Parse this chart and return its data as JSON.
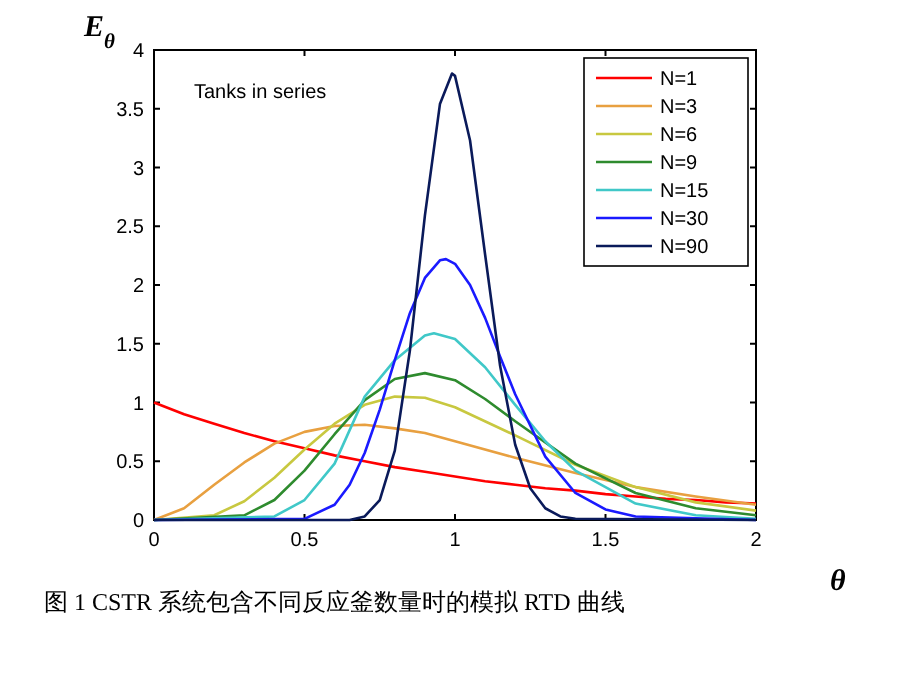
{
  "chart_data": {
    "type": "line",
    "xlabel": "θ",
    "ylabel": "E$_{θ}$",
    "xlim": [
      0,
      2
    ],
    "ylim": [
      0,
      4
    ],
    "xticks": [
      0,
      0.5,
      1,
      1.5,
      2
    ],
    "yticks": [
      0,
      0.5,
      1,
      1.5,
      2,
      2.5,
      3,
      3.5,
      4
    ],
    "legend": "top right",
    "annotations": [
      "Tanks in series",
      "图 1 CSTR 系统包含不同反应釜数量时的模拟 RTD 曲线"
    ],
    "series": [
      {
        "name": "N=1",
        "color": "#ff0000",
        "x": [
          0,
          0.1,
          0.2,
          0.3,
          0.4,
          0.5,
          0.6,
          0.7,
          0.8,
          0.9,
          1,
          1.1,
          1.2,
          1.3,
          1.4,
          1.5,
          1.6,
          1.7,
          1.8,
          1.9,
          2
        ],
        "values": [
          1,
          0.9,
          0.82,
          0.74,
          0.67,
          0.61,
          0.55,
          0.5,
          0.45,
          0.41,
          0.37,
          0.33,
          0.3,
          0.27,
          0.25,
          0.22,
          0.2,
          0.18,
          0.17,
          0.15,
          0.14
        ]
      },
      {
        "name": "N=3",
        "color": "#e8a040",
        "x": [
          0,
          0.1,
          0.2,
          0.3,
          0.4,
          0.5,
          0.6,
          0.7,
          0.8,
          0.9,
          1,
          1.2,
          1.4,
          1.6,
          1.8,
          2
        ],
        "values": [
          0,
          0.1,
          0.3,
          0.49,
          0.65,
          0.75,
          0.8,
          0.81,
          0.78,
          0.74,
          0.67,
          0.53,
          0.4,
          0.28,
          0.2,
          0.13
        ]
      },
      {
        "name": "N=6",
        "color": "#c8c840",
        "x": [
          0,
          0.2,
          0.3,
          0.4,
          0.5,
          0.6,
          0.7,
          0.8,
          0.9,
          1,
          1.2,
          1.4,
          1.6,
          1.8,
          2
        ],
        "values": [
          0,
          0.04,
          0.16,
          0.36,
          0.6,
          0.82,
          0.98,
          1.05,
          1.04,
          0.96,
          0.72,
          0.47,
          0.28,
          0.15,
          0.08
        ]
      },
      {
        "name": "N=9",
        "color": "#2e8b2e",
        "x": [
          0,
          0.3,
          0.4,
          0.5,
          0.6,
          0.7,
          0.8,
          0.9,
          1,
          1.1,
          1.2,
          1.4,
          1.6,
          1.8,
          2
        ],
        "values": [
          0,
          0.04,
          0.17,
          0.42,
          0.73,
          1.02,
          1.2,
          1.25,
          1.19,
          1.03,
          0.84,
          0.48,
          0.23,
          0.1,
          0.04
        ]
      },
      {
        "name": "N=15",
        "color": "#40c8c8",
        "x": [
          0,
          0.4,
          0.5,
          0.6,
          0.7,
          0.8,
          0.9,
          0.93,
          1,
          1.1,
          1.2,
          1.3,
          1.4,
          1.6,
          1.8,
          2
        ],
        "values": [
          0,
          0.03,
          0.17,
          0.48,
          1.05,
          1.36,
          1.57,
          1.59,
          1.54,
          1.3,
          0.98,
          0.67,
          0.42,
          0.14,
          0.04,
          0.01
        ]
      },
      {
        "name": "N=30",
        "color": "#1a1aff",
        "x": [
          0,
          0.5,
          0.6,
          0.65,
          0.7,
          0.75,
          0.8,
          0.85,
          0.9,
          0.95,
          0.97,
          1,
          1.05,
          1.1,
          1.15,
          1.2,
          1.3,
          1.4,
          1.5,
          1.6,
          2
        ],
        "values": [
          0,
          0.01,
          0.13,
          0.3,
          0.57,
          0.94,
          1.36,
          1.76,
          2.06,
          2.21,
          2.22,
          2.18,
          2,
          1.72,
          1.39,
          1.07,
          0.54,
          0.23,
          0.09,
          0.03,
          0
        ]
      },
      {
        "name": "N=90",
        "color": "#0a1a5a",
        "x": [
          0,
          0.65,
          0.7,
          0.75,
          0.8,
          0.85,
          0.9,
          0.95,
          0.99,
          1,
          1.05,
          1.1,
          1.15,
          1.2,
          1.25,
          1.3,
          1.35,
          1.4,
          2
        ],
        "values": [
          0,
          0,
          0.03,
          0.17,
          0.59,
          1.44,
          2.59,
          3.54,
          3.8,
          3.78,
          3.23,
          2.26,
          1.31,
          0.64,
          0.27,
          0.1,
          0.03,
          0.01,
          0
        ]
      }
    ]
  }
}
